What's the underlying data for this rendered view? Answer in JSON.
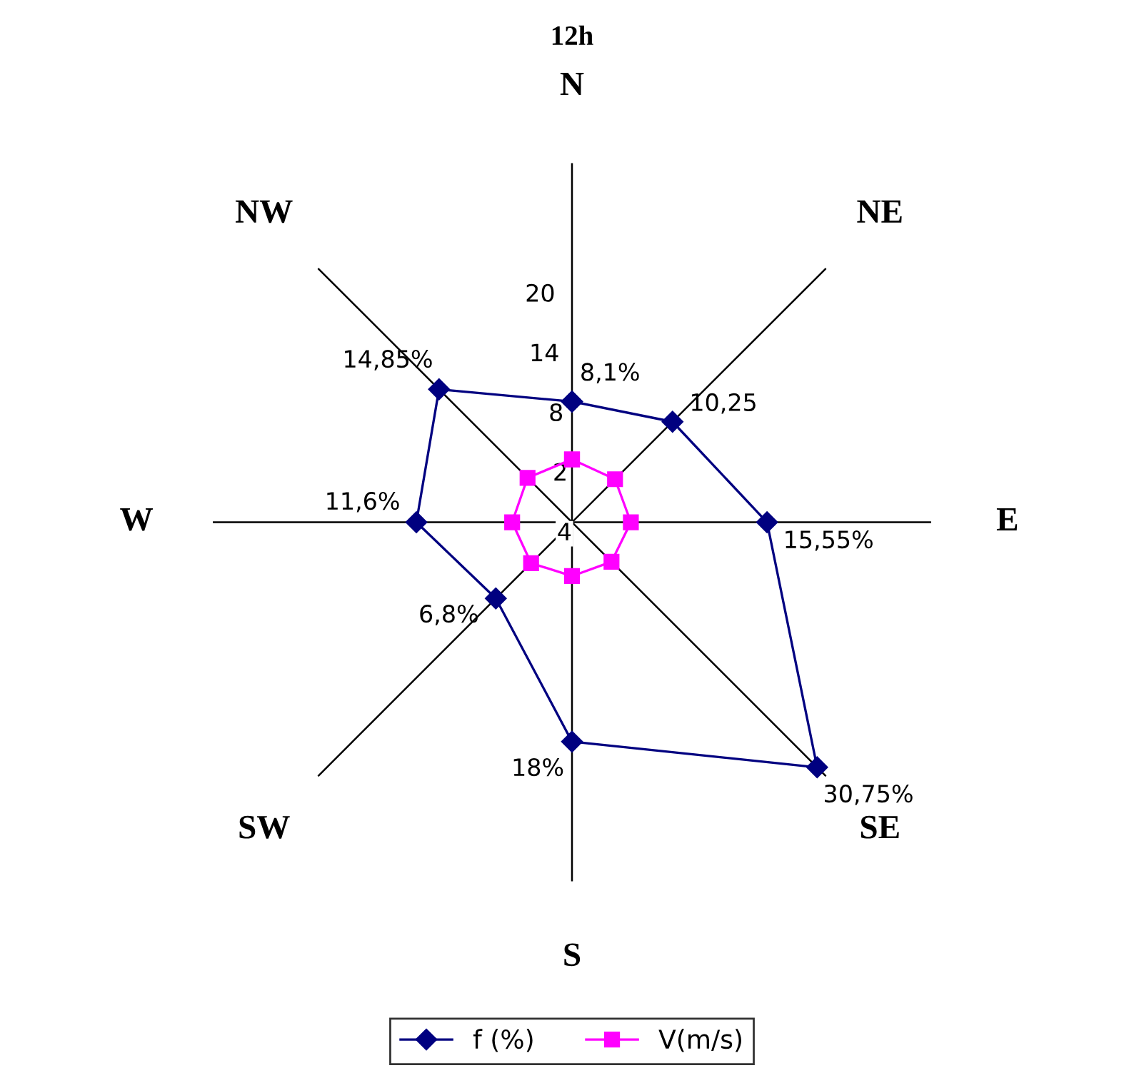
{
  "chart_data": {
    "type": "radar",
    "title": "12h",
    "categories": [
      "N",
      "NE",
      "E",
      "SE",
      "S",
      "SW",
      "W",
      "NW"
    ],
    "series": [
      {
        "name": "f (%)",
        "color": "#000080",
        "marker": "diamond",
        "values": [
          8.1,
          10.25,
          15.55,
          30.75,
          18,
          6.8,
          11.6,
          14.85
        ],
        "value_labels": [
          "8,1%",
          "10,25",
          "15,55%",
          "30,75%",
          "18%",
          "6,8%",
          "11,6%",
          "14,85%"
        ]
      },
      {
        "name": "V(m/s)",
        "color": "#ff00ff",
        "marker": "square",
        "values": [
          2.3,
          2.1,
          1.9,
          1.6,
          1.4,
          1.8,
          2.0,
          2.3
        ]
      }
    ],
    "ylim": [
      -4,
      32
    ],
    "yticks": [
      {
        "value": -4,
        "label": "4"
      },
      2,
      8,
      14,
      20
    ],
    "grid": "x",
    "legend": "bottom"
  }
}
